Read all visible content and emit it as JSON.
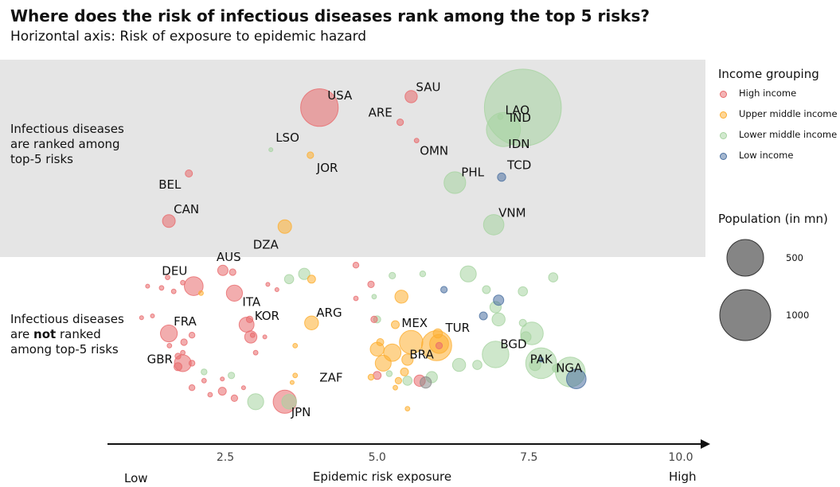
{
  "title": "Where does the risk of infectious diseases rank among the top 5 risks?",
  "subtitle": "Horizontal axis: Risk of exposure to epidemic hazard",
  "band_labels": {
    "top": [
      "Infectious diseases",
      "are ranked among",
      "top-5 risks"
    ],
    "bottom_pre": "Infectious diseases",
    "bottom_mid_a": "are ",
    "bottom_mid_b": "not",
    "bottom_mid_c": " ranked",
    "bottom_post": "among top-5 risks"
  },
  "legend": {
    "income_title": "Income grouping",
    "groups": [
      {
        "key": "high",
        "label": "High income",
        "color": "#e8696b"
      },
      {
        "key": "upper",
        "label": "Upper middle income",
        "color": "#fdae2f"
      },
      {
        "key": "lower",
        "label": "Lower middle income",
        "color": "#a6d3a0"
      },
      {
        "key": "low",
        "label": "Low income",
        "color": "#4a6fa0"
      }
    ],
    "size_title": "Population (in mn)",
    "size_values": [
      "500",
      "1000"
    ]
  },
  "colors": {
    "band_bg": "#e5e5e5",
    "gray_point": "#8a8a8a"
  },
  "chart_data": {
    "type": "scatter",
    "title": "Where does the risk of infectious diseases rank among the top 5 risks?",
    "xlabel": "Epidemic risk exposure",
    "x_low_label": "Low",
    "x_high_label": "High",
    "xlim": [
      0.8,
      10.5
    ],
    "xticks": [
      "2.5",
      "5.0",
      "7.5",
      "10.0"
    ],
    "xtick_values": [
      2.5,
      5.0,
      7.5,
      10.0
    ],
    "categories": [
      "Infectious diseases are ranked among top-5 risks",
      "Infectious diseases are not ranked among top-5 risks"
    ],
    "points": [
      {
        "label": "USA",
        "x": 4.05,
        "y": 0.76,
        "pop": 330,
        "income": "high"
      },
      {
        "label": "SAU",
        "x": 5.56,
        "y": 0.82,
        "pop": 35,
        "income": "high"
      },
      {
        "label": "ARE",
        "x": 5.38,
        "y": 0.68,
        "pop": 10,
        "income": "high"
      },
      {
        "label": "OMN",
        "x": 5.65,
        "y": 0.58,
        "pop": 5,
        "income": "high"
      },
      {
        "label": "LSO",
        "x": 3.25,
        "y": 0.53,
        "pop": 2,
        "income": "lower"
      },
      {
        "label": "JOR",
        "x": 3.9,
        "y": 0.5,
        "pop": 10,
        "income": "upper"
      },
      {
        "label": "BEL",
        "x": 1.9,
        "y": 0.4,
        "pop": 12,
        "income": "high"
      },
      {
        "label": "CAN",
        "x": 1.57,
        "y": 0.14,
        "pop": 38,
        "income": "high"
      },
      {
        "label": "DZA",
        "x": 3.48,
        "y": 0.11,
        "pop": 43,
        "income": "upper"
      },
      {
        "label": "LAO",
        "x": 7.03,
        "y": 0.71,
        "pop": 7,
        "income": "lower"
      },
      {
        "label": "IND",
        "x": 7.4,
        "y": 0.76,
        "pop": 1380,
        "income": "lower"
      },
      {
        "label": "IDN",
        "x": 7.08,
        "y": 0.64,
        "pop": 270,
        "income": "lower"
      },
      {
        "label": "PHL",
        "x": 6.28,
        "y": 0.35,
        "pop": 110,
        "income": "lower"
      },
      {
        "label": "TCD",
        "x": 7.05,
        "y": 0.38,
        "pop": 16,
        "income": "low"
      },
      {
        "label": "VNM",
        "x": 6.92,
        "y": 0.12,
        "pop": 97,
        "income": "lower"
      },
      {
        "label": "DEU",
        "x": 1.98,
        "y": 0.82,
        "pop": 83,
        "income": "high"
      },
      {
        "label": "AUS",
        "x": 2.46,
        "y": 0.91,
        "pop": 25,
        "income": "high"
      },
      {
        "label": "ITA",
        "x": 2.65,
        "y": 0.78,
        "pop": 60,
        "income": "high"
      },
      {
        "label": "FRA",
        "x": 1.57,
        "y": 0.55,
        "pop": 67,
        "income": "high"
      },
      {
        "label": "KOR",
        "x": 2.85,
        "y": 0.6,
        "pop": 52,
        "income": "high"
      },
      {
        "label": "GBR",
        "x": 1.8,
        "y": 0.38,
        "pop": 67,
        "income": "high"
      },
      {
        "label": "ARG",
        "x": 3.92,
        "y": 0.61,
        "pop": 45,
        "income": "upper"
      },
      {
        "label": "JPN",
        "x": 3.48,
        "y": 0.16,
        "pop": 126,
        "income": "high"
      },
      {
        "label": "MEX",
        "x": 5.56,
        "y": 0.5,
        "pop": 128,
        "income": "upper"
      },
      {
        "label": "TUR",
        "x": 6.02,
        "y": 0.49,
        "pop": 84,
        "income": "upper"
      },
      {
        "label": "BRA",
        "x": 5.98,
        "y": 0.48,
        "pop": 212,
        "income": "upper"
      },
      {
        "label": "ZAF",
        "x": 5.1,
        "y": 0.38,
        "pop": 59,
        "income": "upper"
      },
      {
        "label": "BGD",
        "x": 6.95,
        "y": 0.43,
        "pop": 165,
        "income": "lower"
      },
      {
        "label": "PAK",
        "x": 7.7,
        "y": 0.38,
        "pop": 220,
        "income": "lower"
      },
      {
        "label": "NGA",
        "x": 8.18,
        "y": 0.33,
        "pop": 206,
        "income": "lower"
      },
      {
        "label": "",
        "x": 8.28,
        "y": 0.29,
        "pop": 90,
        "income": "low"
      },
      {
        "label": "",
        "x": 7.55,
        "y": 0.55,
        "pop": 120,
        "income": "lower"
      },
      {
        "label": "",
        "x": 6.5,
        "y": 0.89,
        "pop": 60,
        "income": "lower"
      },
      {
        "label": "",
        "x": 7.0,
        "y": 0.74,
        "pop": 25,
        "income": "low"
      },
      {
        "label": "",
        "x": 6.75,
        "y": 0.65,
        "pop": 15,
        "income": "low"
      },
      {
        "label": "",
        "x": 6.1,
        "y": 0.8,
        "pop": 10,
        "income": "low"
      },
      {
        "label": "",
        "x": 6.8,
        "y": 0.8,
        "pop": 15,
        "income": "lower"
      },
      {
        "label": "",
        "x": 7.0,
        "y": 0.63,
        "pop": 40,
        "income": "lower"
      },
      {
        "label": "",
        "x": 7.4,
        "y": 0.61,
        "pop": 12,
        "income": "lower"
      },
      {
        "label": "",
        "x": 7.4,
        "y": 0.79,
        "pop": 20,
        "income": "lower"
      },
      {
        "label": "",
        "x": 7.9,
        "y": 0.87,
        "pop": 20,
        "income": "lower"
      },
      {
        "label": "",
        "x": 6.95,
        "y": 0.7,
        "pop": 30,
        "income": "lower"
      },
      {
        "label": "",
        "x": 6.35,
        "y": 0.37,
        "pop": 40,
        "income": "lower"
      },
      {
        "label": "",
        "x": 6.65,
        "y": 0.37,
        "pop": 20,
        "income": "lower"
      },
      {
        "label": "",
        "x": 7.6,
        "y": 0.37,
        "pop": 30,
        "income": "lower"
      },
      {
        "label": "",
        "x": 7.45,
        "y": 0.53,
        "pop": 25,
        "income": "lower"
      },
      {
        "label": "",
        "x": 7.7,
        "y": 0.4,
        "pop": 5,
        "income": "low"
      },
      {
        "label": "",
        "x": 5.25,
        "y": 0.88,
        "pop": 10,
        "income": "lower"
      },
      {
        "label": "",
        "x": 4.95,
        "y": 0.76,
        "pop": 5,
        "income": "lower"
      },
      {
        "label": "",
        "x": 5.0,
        "y": 0.63,
        "pop": 12,
        "income": "lower"
      },
      {
        "label": "",
        "x": 5.9,
        "y": 0.3,
        "pop": 30,
        "income": "lower"
      },
      {
        "label": "",
        "x": 5.5,
        "y": 0.28,
        "pop": 20,
        "income": "lower"
      },
      {
        "label": "",
        "x": 3.55,
        "y": 0.16,
        "pop": 50,
        "income": "lower"
      },
      {
        "label": "",
        "x": 3.0,
        "y": 0.16,
        "pop": 60,
        "income": "lower"
      },
      {
        "label": "",
        "x": 2.15,
        "y": 0.33,
        "pop": 8,
        "income": "lower"
      },
      {
        "label": "",
        "x": 2.6,
        "y": 0.31,
        "pop": 10,
        "income": "lower"
      },
      {
        "label": "",
        "x": 3.55,
        "y": 0.86,
        "pop": 20,
        "income": "lower"
      },
      {
        "label": "",
        "x": 3.8,
        "y": 0.89,
        "pop": 30,
        "income": "lower"
      },
      {
        "label": "",
        "x": 5.75,
        "y": 0.89,
        "pop": 8,
        "income": "lower"
      },
      {
        "label": "",
        "x": 7.95,
        "y": 0.35,
        "pop": 15,
        "income": "lower"
      },
      {
        "label": "",
        "x": 5.2,
        "y": 0.32,
        "pop": 8,
        "income": "lower"
      },
      {
        "label": "",
        "x": 5.7,
        "y": 0.28,
        "pop": 30,
        "income": "high"
      },
      {
        "label": "",
        "x": 5.8,
        "y": 0.27,
        "pop": 30,
        "income": "gray"
      },
      {
        "label": "",
        "x": 5.4,
        "y": 0.76,
        "pop": 40,
        "income": "upper"
      },
      {
        "label": "",
        "x": 5.3,
        "y": 0.6,
        "pop": 15,
        "income": "upper"
      },
      {
        "label": "",
        "x": 5.25,
        "y": 0.44,
        "pop": 70,
        "income": "upper"
      },
      {
        "label": "",
        "x": 5.0,
        "y": 0.46,
        "pop": 45,
        "income": "upper"
      },
      {
        "label": "",
        "x": 5.5,
        "y": 0.4,
        "pop": 30,
        "income": "upper"
      },
      {
        "label": "",
        "x": 5.45,
        "y": 0.33,
        "pop": 15,
        "income": "upper"
      },
      {
        "label": "",
        "x": 5.35,
        "y": 0.28,
        "pop": 10,
        "income": "upper"
      },
      {
        "label": "",
        "x": 4.9,
        "y": 0.3,
        "pop": 8,
        "income": "upper"
      },
      {
        "label": "",
        "x": 5.3,
        "y": 0.24,
        "pop": 5,
        "income": "upper"
      },
      {
        "label": "",
        "x": 5.5,
        "y": 0.12,
        "pop": 5,
        "income": "upper"
      },
      {
        "label": "",
        "x": 5.05,
        "y": 0.5,
        "pop": 12,
        "income": "upper"
      },
      {
        "label": "",
        "x": 6.0,
        "y": 0.55,
        "pop": 20,
        "income": "upper"
      },
      {
        "label": "",
        "x": 3.92,
        "y": 0.86,
        "pop": 15,
        "income": "upper"
      },
      {
        "label": "",
        "x": 3.65,
        "y": 0.48,
        "pop": 5,
        "income": "upper"
      },
      {
        "label": "",
        "x": 3.65,
        "y": 0.31,
        "pop": 5,
        "income": "upper"
      },
      {
        "label": "",
        "x": 3.6,
        "y": 0.27,
        "pop": 3,
        "income": "upper"
      },
      {
        "label": "",
        "x": 2.1,
        "y": 0.78,
        "pop": 5,
        "income": "upper"
      },
      {
        "label": "",
        "x": 1.8,
        "y": 0.84,
        "pop": 5,
        "income": "high"
      },
      {
        "label": "",
        "x": 1.65,
        "y": 0.79,
        "pop": 5,
        "income": "high"
      },
      {
        "label": "",
        "x": 1.45,
        "y": 0.81,
        "pop": 5,
        "income": "high"
      },
      {
        "label": "",
        "x": 1.3,
        "y": 0.65,
        "pop": 3,
        "income": "high"
      },
      {
        "label": "",
        "x": 1.55,
        "y": 0.87,
        "pop": 5,
        "income": "high"
      },
      {
        "label": "",
        "x": 2.62,
        "y": 0.9,
        "pop": 10,
        "income": "high"
      },
      {
        "label": "",
        "x": 2.9,
        "y": 0.63,
        "pop": 10,
        "income": "high"
      },
      {
        "label": "",
        "x": 2.92,
        "y": 0.53,
        "pop": 35,
        "income": "high"
      },
      {
        "label": "",
        "x": 2.95,
        "y": 0.54,
        "pop": 5,
        "income": "high"
      },
      {
        "label": "",
        "x": 3.15,
        "y": 0.53,
        "pop": 3,
        "income": "high"
      },
      {
        "label": "",
        "x": 3.0,
        "y": 0.44,
        "pop": 5,
        "income": "high"
      },
      {
        "label": "",
        "x": 3.35,
        "y": 0.8,
        "pop": 3,
        "income": "high"
      },
      {
        "label": "",
        "x": 3.2,
        "y": 0.83,
        "pop": 3,
        "income": "high"
      },
      {
        "label": "",
        "x": 1.95,
        "y": 0.54,
        "pop": 8,
        "income": "high"
      },
      {
        "label": "",
        "x": 1.82,
        "y": 0.5,
        "pop": 10,
        "income": "high"
      },
      {
        "label": "",
        "x": 1.58,
        "y": 0.48,
        "pop": 5,
        "income": "high"
      },
      {
        "label": "",
        "x": 1.72,
        "y": 0.42,
        "pop": 8,
        "income": "high"
      },
      {
        "label": "",
        "x": 1.8,
        "y": 0.44,
        "pop": 5,
        "income": "high"
      },
      {
        "label": "",
        "x": 1.95,
        "y": 0.38,
        "pop": 8,
        "income": "high"
      },
      {
        "label": "",
        "x": 1.72,
        "y": 0.36,
        "pop": 15,
        "income": "high"
      },
      {
        "label": "",
        "x": 1.95,
        "y": 0.24,
        "pop": 8,
        "income": "high"
      },
      {
        "label": "",
        "x": 2.15,
        "y": 0.28,
        "pop": 5,
        "income": "high"
      },
      {
        "label": "",
        "x": 2.25,
        "y": 0.2,
        "pop": 5,
        "income": "high"
      },
      {
        "label": "",
        "x": 2.45,
        "y": 0.22,
        "pop": 15,
        "income": "high"
      },
      {
        "label": "",
        "x": 2.65,
        "y": 0.18,
        "pop": 10,
        "income": "high"
      },
      {
        "label": "",
        "x": 2.45,
        "y": 0.29,
        "pop": 3,
        "income": "high"
      },
      {
        "label": "",
        "x": 2.8,
        "y": 0.24,
        "pop": 3,
        "income": "high"
      },
      {
        "label": "",
        "x": 4.65,
        "y": 0.94,
        "pop": 8,
        "income": "high"
      },
      {
        "label": "",
        "x": 4.9,
        "y": 0.83,
        "pop": 10,
        "income": "high"
      },
      {
        "label": "",
        "x": 4.95,
        "y": 0.63,
        "pop": 10,
        "income": "high"
      },
      {
        "label": "",
        "x": 5.0,
        "y": 0.31,
        "pop": 15,
        "income": "high"
      },
      {
        "label": "",
        "x": 4.65,
        "y": 0.75,
        "pop": 5,
        "income": "high"
      },
      {
        "label": "",
        "x": 1.12,
        "y": 0.64,
        "pop": 3,
        "income": "high"
      },
      {
        "label": "",
        "x": 1.22,
        "y": 0.82,
        "pop": 3,
        "income": "high"
      },
      {
        "label": "",
        "x": 6.02,
        "y": 0.48,
        "pop": 10,
        "income": "high"
      }
    ]
  }
}
